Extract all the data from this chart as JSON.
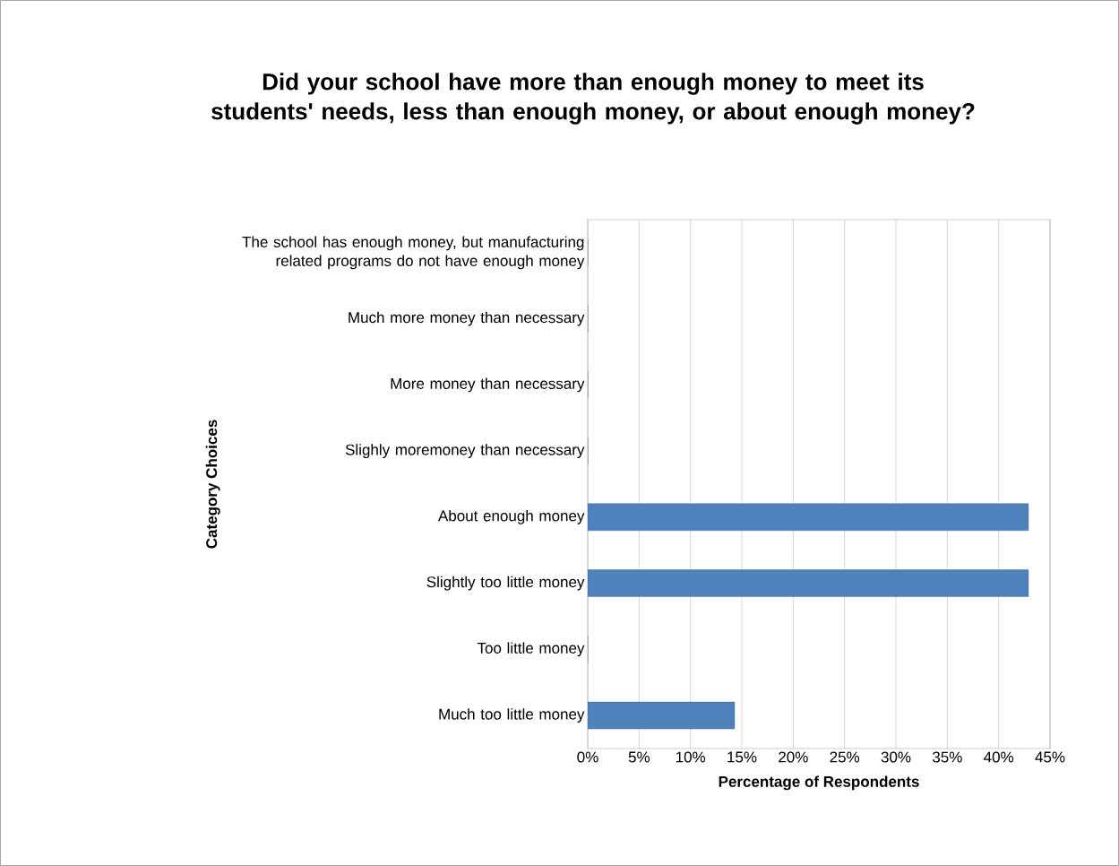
{
  "chart_data": {
    "type": "bar",
    "orientation": "horizontal",
    "title": "Did your school have more than enough money to meet its students' needs, less than enough money, or about enough money?",
    "xlabel": "Percentage of Respondents",
    "ylabel": "Category Choices",
    "categories": [
      "The school has enough money, but manufacturing related programs do not have enough money",
      "Much more money than necessary",
      "More money than necessary",
      "Slighly moremoney than necessary",
      "About enough money",
      "Slightly too little money",
      "Too little money",
      "Much too little money"
    ],
    "values": [
      0,
      0,
      0,
      0,
      42.9,
      42.9,
      0,
      14.3
    ],
    "color": "#4f81bd",
    "xlim": [
      0,
      45
    ],
    "xticks": [
      {
        "value": 0,
        "label": "0%"
      },
      {
        "value": 5,
        "label": "5%"
      },
      {
        "value": 10,
        "label": "10%"
      },
      {
        "value": 15,
        "label": "15%"
      },
      {
        "value": 20,
        "label": "20%"
      },
      {
        "value": 25,
        "label": "25%"
      },
      {
        "value": 30,
        "label": "30%"
      },
      {
        "value": 35,
        "label": "35%"
      },
      {
        "value": 40,
        "label": "40%"
      },
      {
        "value": 45,
        "label": "45%"
      }
    ],
    "grid": "x"
  }
}
